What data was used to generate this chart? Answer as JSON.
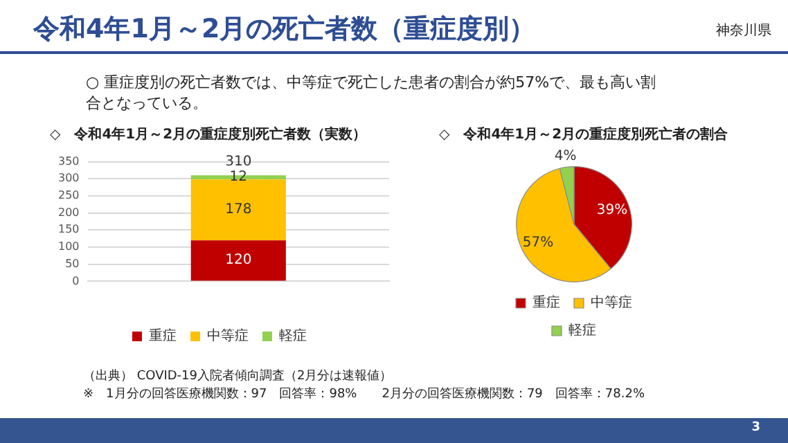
{
  "chart_data": [
    {
      "type": "bar",
      "title": "◇　令和4年1月～2月の重症度別死亡者数（実数）",
      "annotations": [
        "令和4年1月～2月の死亡者数（重症度別）",
        "神奈川県",
        "○ 重症度別の死亡者数では、中等症で死亡した患者の割合が約57%で、最も高い割合となっている。",
        "（出典） COVID-19入院者傾向調査（2月分は速報値）",
        "※　1月分の回答医療機関数：97　回答率：98%　　2月分の回答医療機関数：79　回答率：78.2%",
        "3"
      ],
      "categories": [
        null
      ],
      "stacked": true,
      "series": [
        {
          "name": "重症",
          "color": "#c00000",
          "values": [
            120
          ]
        },
        {
          "name": "中等症",
          "color": "#ffc000",
          "values": [
            178
          ]
        },
        {
          "name": "軽症",
          "color": "#92d050",
          "values": [
            12
          ]
        }
      ],
      "ylim": [
        0,
        350
      ],
      "yticks": [
        0,
        50,
        100,
        150,
        200,
        250,
        300,
        350
      ],
      "grid": "y",
      "legend": "bottom",
      "data_labels": true,
      "totals": [
        "310"
      ]
    },
    {
      "type": "pie",
      "title": "◇　令和4年1月～2月の重症度別死亡者の割合",
      "categories": [
        "重症",
        "中等症",
        "軽症"
      ],
      "values": [
        39,
        57,
        4
      ],
      "colors": [
        "#c00000",
        "#ffc000",
        "#92d050"
      ],
      "value_labels": [
        "39%",
        "57%",
        "4%"
      ],
      "legend": "bottom"
    }
  ]
}
